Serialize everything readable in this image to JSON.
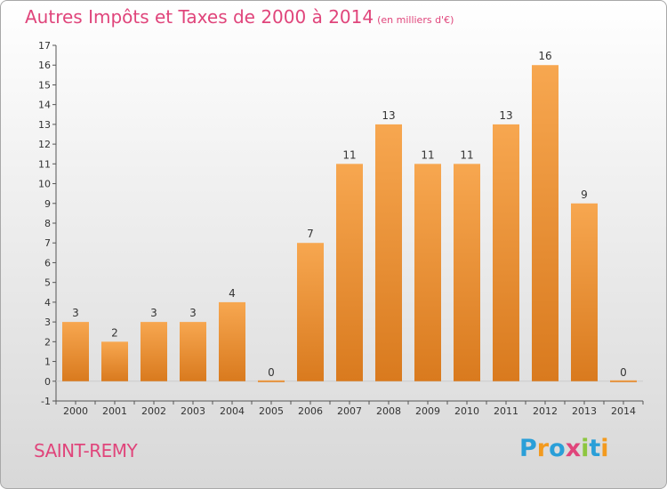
{
  "title": "Autres Impôts et Taxes de 2000 à 2014",
  "unit": "(en milliers d'€)",
  "commune": "SAINT-REMY",
  "logo": {
    "letters": [
      "P",
      "r",
      "o",
      "x",
      "i",
      "t",
      "i"
    ],
    "colors": [
      "#2a9fd8",
      "#f39a1e",
      "#2a9fd8",
      "#e0457b",
      "#8dc63f",
      "#2a9fd8",
      "#f39a1e"
    ]
  },
  "colors": {
    "bar_light": "#f7a750",
    "bar_dark": "#d97a1e",
    "accent": "#e0457b",
    "axis": "#555555"
  },
  "chart_data": {
    "type": "bar",
    "categories": [
      "2000",
      "2001",
      "2002",
      "2003",
      "2004",
      "2005",
      "2006",
      "2007",
      "2008",
      "2009",
      "2010",
      "2011",
      "2012",
      "2013",
      "2014"
    ],
    "values": [
      3,
      2,
      3,
      3,
      4,
      0,
      7,
      11,
      13,
      11,
      11,
      13,
      16,
      9,
      0
    ],
    "data_labels": [
      "3",
      "2",
      "3",
      "3",
      "4",
      "0",
      "7",
      "11",
      "13",
      "11",
      "11",
      "13",
      "16",
      "9",
      "0"
    ],
    "y_ticks": [
      -1,
      0,
      1,
      2,
      3,
      4,
      5,
      6,
      7,
      8,
      9,
      10,
      11,
      12,
      13,
      14,
      15,
      16,
      17
    ],
    "ylim": [
      -1,
      17
    ],
    "grid": false
  }
}
